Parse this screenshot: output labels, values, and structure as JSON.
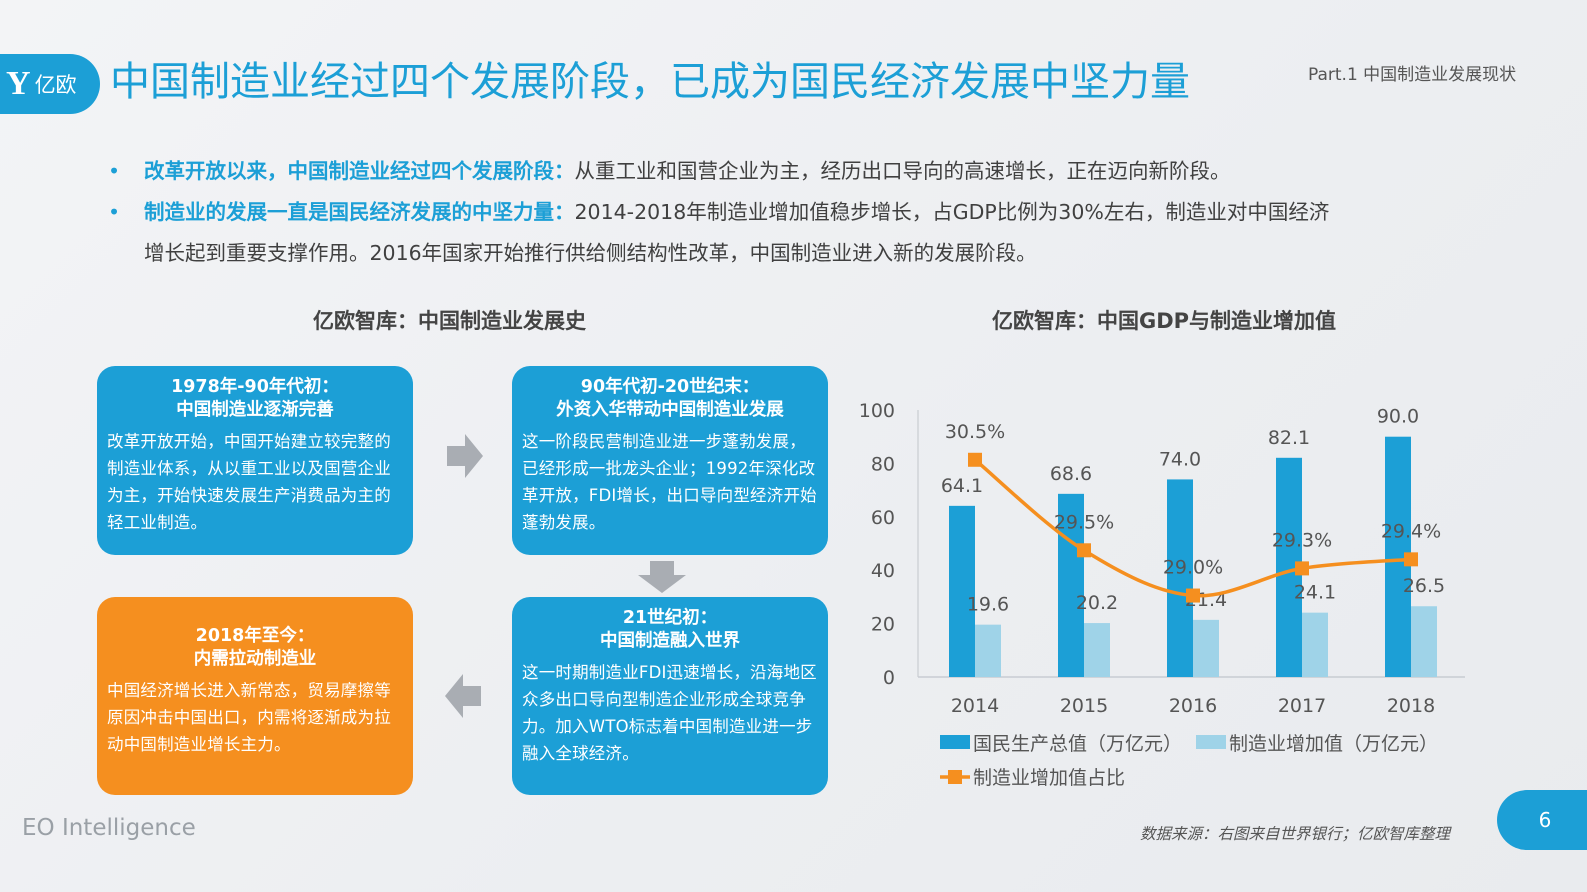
{
  "header": {
    "logo_text": "亿欧",
    "title": "中国制造业经过四个发展阶段，已成为国民经济发展中坚力量",
    "part": "Part.1 中国制造业发展现状"
  },
  "bullets": [
    {
      "bold": "改革开放以来，中国制造业经过四个发展阶段：",
      "text": "从重工业和国营企业为主，经历出口导向的高速增长，正在迈向新阶段。"
    },
    {
      "bold": "制造业的发展一直是国民经济发展的中坚力量：",
      "text": "2014-2018年制造业增加值稳步增长，占GDP比例为30%左右，制造业对中国经济",
      "text2": "增长起到重要支撑作用。2016年国家开始推行供给侧结构性改革，中国制造业进入新的发展阶段。"
    }
  ],
  "history": {
    "title": "亿欧智库：中国制造业发展史",
    "stages": [
      {
        "title1": "1978年-90年代初：",
        "title2": "中国制造业逐渐完善",
        "body": "改革开放开始，中国开始建立较完整的制造业体系，从以重工业以及国营企业为主，开始快速发展生产消费品为主的轻工业制造。"
      },
      {
        "title1": "90年代初-20世纪末：",
        "title2": "外资入华带动中国制造业发展",
        "body": "这一阶段民营制造业进一步蓬勃发展，已经形成一批龙头企业；1992年深化改革开放，FDI增长，出口导向型经济开始蓬勃发展。"
      },
      {
        "title1": "21世纪初：",
        "title2": "中国制造融入世界",
        "body": "这一时期制造业FDI迅速增长，沿海地区众多出口导向型制造企业形成全球竞争力。加入WTO标志着中国制造业进一步融入全球经济。"
      },
      {
        "title1": "2018年至今：",
        "title2": "内需拉动制造业",
        "body": "中国经济增长进入新常态，贸易摩擦等原因冲击中国出口，内需将逐渐成为拉动中国制造业增长主力。"
      }
    ]
  },
  "chart_data": {
    "type": "bar",
    "title": "亿欧智库：中国GDP与制造业增加值",
    "categories": [
      "2014",
      "2015",
      "2016",
      "2017",
      "2018"
    ],
    "ylim": [
      0,
      100
    ],
    "yticks": [
      "0",
      "20",
      "40",
      "60",
      "80",
      "100"
    ],
    "grid": false,
    "legend": "bottom",
    "series": [
      {
        "name": "国民生产总值（万亿元）",
        "type": "bar",
        "color": "#1c9fd6",
        "values": [
          64.1,
          68.6,
          74.0,
          82.1,
          90.0
        ],
        "labels": [
          "64.1",
          "68.6",
          "74.0",
          "82.1",
          "90.0"
        ]
      },
      {
        "name": "制造业增加值（万亿元）",
        "type": "bar",
        "color": "#9fd3e8",
        "values": [
          19.6,
          20.2,
          21.4,
          24.1,
          26.5
        ],
        "labels": [
          "19.6",
          "20.2",
          "21.4",
          "24.1",
          "26.5"
        ]
      },
      {
        "name": "制造业增加值占比",
        "type": "line",
        "color": "#f58f1f",
        "values": [
          30.5,
          29.5,
          29.0,
          29.3,
          29.4
        ],
        "labels": [
          "30.5%",
          "29.5%",
          "29.0%",
          "29.3%",
          "29.4%"
        ],
        "secondary_axis_hidden": true,
        "y2lim": [
          28.1,
          31.05
        ]
      }
    ]
  },
  "footer": {
    "brand": "EO Intelligence",
    "source": "数据来源：右图来自世界银行；亿欧智库整理",
    "page": "6"
  }
}
